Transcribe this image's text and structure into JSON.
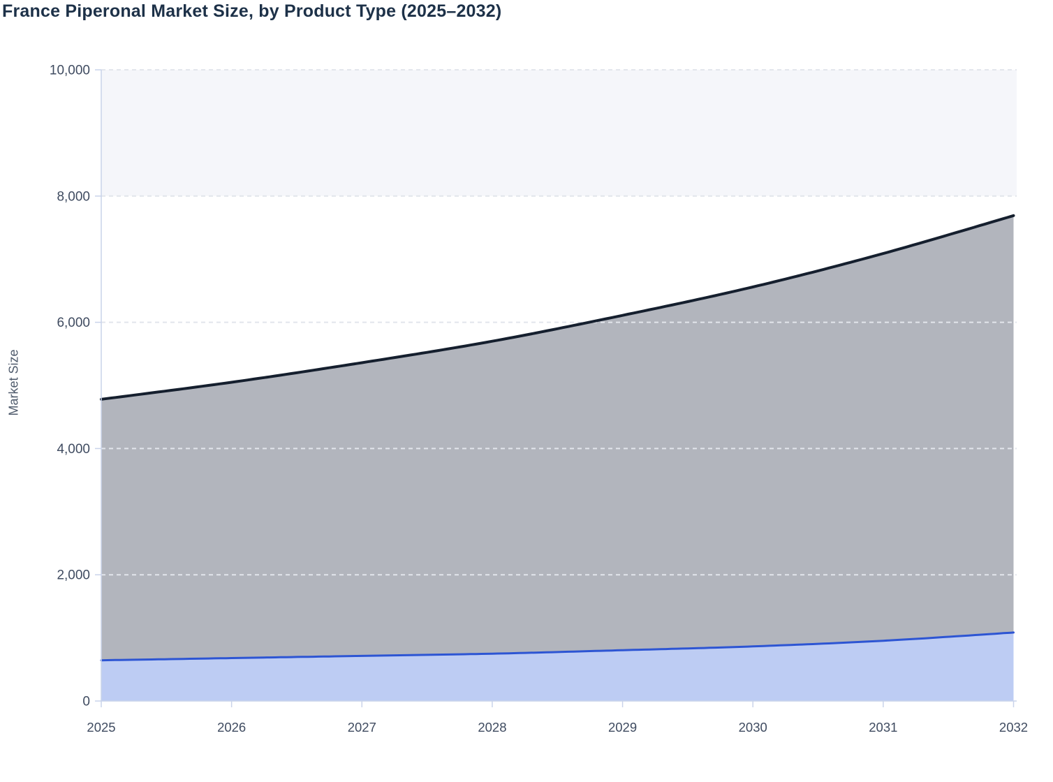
{
  "styles": {
    "page_background": "#ffffff",
    "title_color": "#1d3148"
  },
  "chart_data": {
    "type": "area",
    "stacked": true,
    "smooth": true,
    "legend_visible": false,
    "title": "France Piperonal Market Size, by Product Type (2025–2032)",
    "ylabel": "Market Size",
    "xlabel": "",
    "categories": [
      "2025",
      "2026",
      "2027",
      "2028",
      "2029",
      "2030",
      "2031",
      "2032"
    ],
    "series": [
      {
        "id": "bottom-area-blue",
        "line_color": "#2d55d3",
        "fill_color": "#bdccf3",
        "values": [
          645,
          680,
          715,
          750,
          805,
          865,
          955,
          1085
        ]
      },
      {
        "id": "top-area-grey",
        "line_color": "#151f2e",
        "fill_color": "#b2b5bd",
        "values": [
          4135,
          4370,
          4645,
          4950,
          5305,
          5695,
          6135,
          6605
        ]
      }
    ],
    "stacked_totals": [
      4780,
      5050,
      5360,
      5700,
      6110,
      6560,
      7090,
      7690
    ],
    "ylim": [
      0,
      10000
    ],
    "y_ticks": [
      0,
      2000,
      4000,
      6000,
      8000,
      10000
    ],
    "y_tick_labels": [
      "0",
      "2,000",
      "4,000",
      "6,000",
      "8,000",
      "10,000"
    ],
    "grid": {
      "dashed": true,
      "line_color": "#e2e5ec",
      "band_fill": "#f5f6fa",
      "band_range": [
        8000,
        10000
      ]
    },
    "axis": {
      "line_color": "#c9d3ea",
      "tick_label_color": "#3f4b60",
      "axis_label_color": "#4e5a6b"
    }
  }
}
